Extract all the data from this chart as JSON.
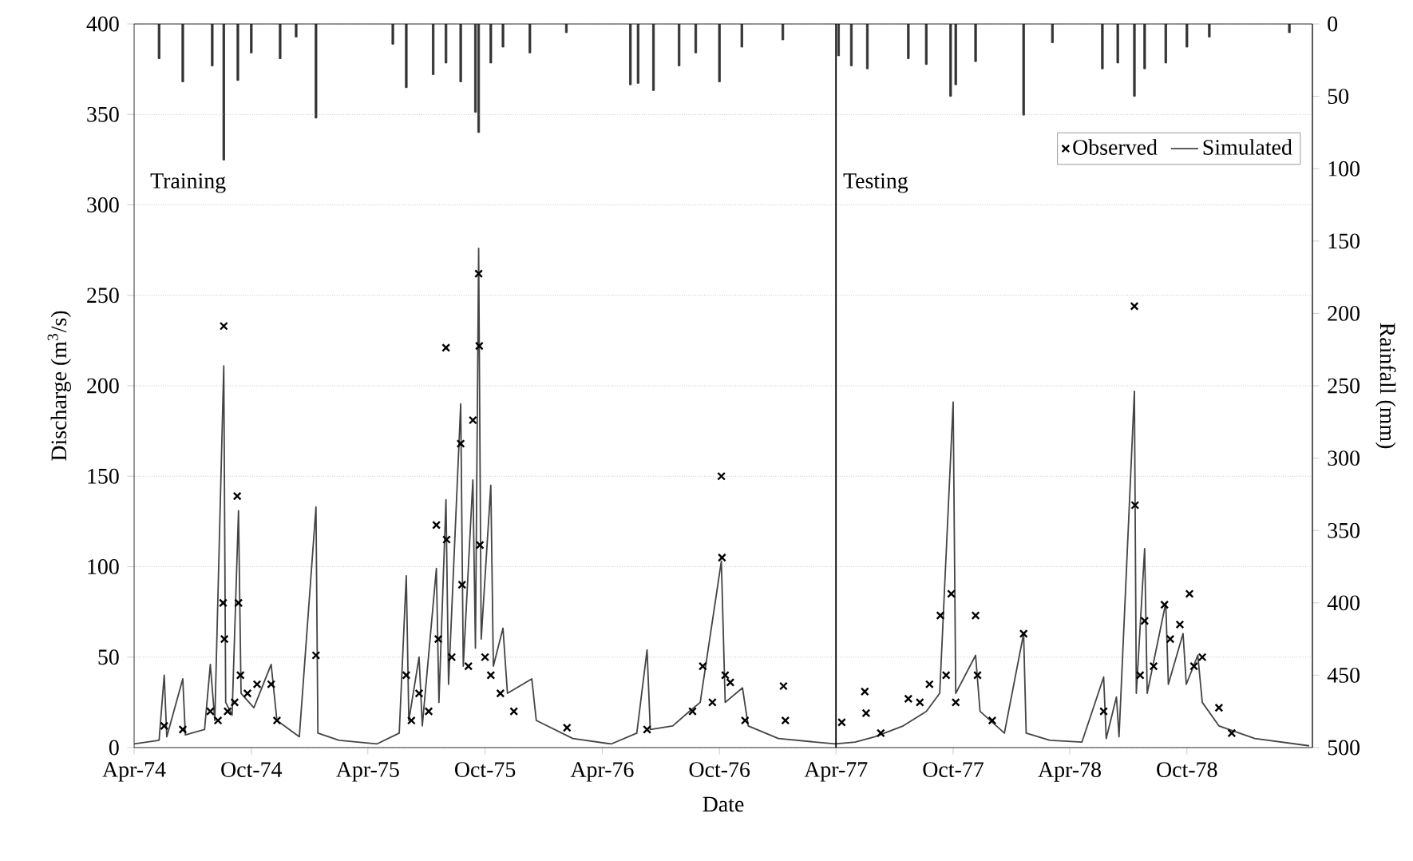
{
  "chart_data": {
    "type": "line",
    "xlabel": "Date",
    "ylabel": "Discharge (m$^{3}$/s)",
    "y2label": "Rainfall (mm)",
    "xlim": [
      "1974-04-01",
      "1979-04-15"
    ],
    "xticks": [
      {
        "value": "1974-04-01",
        "label": "Apr-74"
      },
      {
        "value": "1974-10-01",
        "label": "Oct-74"
      },
      {
        "value": "1975-04-01",
        "label": "Apr-75"
      },
      {
        "value": "1975-10-01",
        "label": "Oct-75"
      },
      {
        "value": "1976-04-01",
        "label": "Apr-76"
      },
      {
        "value": "1976-10-01",
        "label": "Oct-76"
      },
      {
        "value": "1977-04-01",
        "label": "Apr-77"
      },
      {
        "value": "1977-10-01",
        "label": "Oct-77"
      },
      {
        "value": "1978-04-01",
        "label": "Apr-78"
      },
      {
        "value": "1978-10-01",
        "label": "Oct-78"
      }
    ],
    "ylim": [
      0,
      400
    ],
    "yticks": [
      0,
      50,
      100,
      150,
      200,
      250,
      300,
      350,
      400
    ],
    "y2lim": [
      500,
      0
    ],
    "y2ticks": [
      0,
      50,
      100,
      150,
      200,
      250,
      300,
      350,
      400,
      450,
      500
    ],
    "grid": "y",
    "legend": "top right",
    "ref_lines": [
      {
        "axis": "x",
        "value": "1977-04-01",
        "color": "#000000"
      }
    ],
    "annotations": [
      "Training",
      "Testing"
    ],
    "series": [
      {
        "name": "Observed",
        "type": "scatter",
        "marker": "cross",
        "color": "#000000",
        "x": [
          "1974-05-18",
          "1974-06-16",
          "1974-07-29",
          "1974-08-10",
          "1974-08-18",
          "1974-08-19",
          "1974-08-20",
          "1974-08-25",
          "1974-09-05",
          "1974-09-09",
          "1974-09-11",
          "1974-09-14",
          "1974-09-25",
          "1974-10-10",
          "1974-11-01",
          "1974-11-10",
          "1975-01-10",
          "1975-05-31",
          "1975-06-08",
          "1975-06-20",
          "1975-07-05",
          "1975-07-17",
          "1975-07-20",
          "1975-08-01",
          "1975-08-02",
          "1975-08-10",
          "1975-08-24",
          "1975-08-26",
          "1975-09-05",
          "1975-09-12",
          "1975-09-21",
          "1975-09-22",
          "1975-09-23",
          "1975-10-01",
          "1975-10-10",
          "1975-10-25",
          "1975-11-15",
          "1976-02-06",
          "1976-06-10",
          "1976-08-20",
          "1976-09-05",
          "1976-09-20",
          "1976-10-04",
          "1976-10-05",
          "1976-10-10",
          "1976-10-18",
          "1976-11-10",
          "1977-01-09",
          "1977-01-12",
          "1977-04-10",
          "1977-05-16",
          "1977-05-18",
          "1977-06-10",
          "1977-07-23",
          "1977-08-10",
          "1977-08-25",
          "1977-09-11",
          "1977-09-20",
          "1977-09-28",
          "1977-10-05",
          "1977-11-05",
          "1977-11-08",
          "1977-12-01",
          "1978-01-19",
          "1978-05-24",
          "1978-07-11",
          "1978-07-12",
          "1978-07-20",
          "1978-07-27",
          "1978-08-10",
          "1978-08-27",
          "1978-09-05",
          "1978-09-20",
          "1978-10-05",
          "1978-10-12",
          "1978-10-25",
          "1978-11-20",
          "1978-12-10"
        ],
        "values": [
          12,
          10,
          20,
          15,
          80,
          233,
          60,
          20,
          25,
          139,
          80,
          40,
          30,
          35,
          35,
          15,
          51,
          40,
          15,
          30,
          20,
          123,
          60,
          221,
          115,
          50,
          168,
          90,
          45,
          181,
          262,
          222,
          112,
          50,
          40,
          30,
          20,
          11,
          10,
          20,
          45,
          25,
          150,
          105,
          40,
          36,
          15,
          34,
          15,
          14,
          31,
          19,
          8,
          27,
          25,
          35,
          73,
          40,
          85,
          25,
          73,
          40,
          15,
          63,
          20,
          244,
          134,
          40,
          70,
          45,
          79,
          60,
          68,
          85,
          45,
          50,
          22,
          8
        ]
      },
      {
        "name": "Simulated",
        "color": "#444444",
        "x": [
          "1974-04-01",
          "1974-05-10",
          "1974-05-18",
          "1974-05-22",
          "1974-06-16",
          "1974-06-20",
          "1974-07-20",
          "1974-07-29",
          "1974-08-05",
          "1974-08-19",
          "1974-08-22",
          "1974-09-01",
          "1974-09-11",
          "1974-09-15",
          "1974-10-05",
          "1974-11-01",
          "1974-11-10",
          "1974-12-15",
          "1975-01-10",
          "1975-01-13",
          "1975-02-15",
          "1975-04-15",
          "1975-05-20",
          "1975-05-31",
          "1975-06-04",
          "1975-06-20",
          "1975-06-25",
          "1975-07-17",
          "1975-07-21",
          "1975-08-01",
          "1975-08-05",
          "1975-08-24",
          "1975-08-28",
          "1975-09-12",
          "1975-09-16",
          "1975-09-21",
          "1975-09-25",
          "1975-10-10",
          "1975-10-14",
          "1975-10-29",
          "1975-11-05",
          "1975-12-13",
          "1975-12-20",
          "1976-02-15",
          "1976-04-15",
          "1976-05-25",
          "1976-06-10",
          "1976-06-15",
          "1976-07-20",
          "1976-08-15",
          "1976-09-01",
          "1976-10-04",
          "1976-10-10",
          "1976-11-06",
          "1976-11-15",
          "1977-01-01",
          "1977-03-31",
          "1977-05-01",
          "1977-06-01",
          "1977-07-15",
          "1977-08-20",
          "1977-09-10",
          "1977-10-01",
          "1977-10-05",
          "1977-11-05",
          "1977-11-12",
          "1977-12-20",
          "1978-01-19",
          "1978-01-23",
          "1978-03-01",
          "1978-04-20",
          "1978-05-24",
          "1978-05-28",
          "1978-06-13",
          "1978-06-17",
          "1978-07-11",
          "1978-07-14",
          "1978-07-27",
          "1978-07-31",
          "1978-08-29",
          "1978-09-02",
          "1978-09-25",
          "1978-09-30",
          "1978-10-18",
          "1978-10-25",
          "1978-11-20",
          "1979-01-15",
          "1979-04-10"
        ],
        "values": [
          2,
          4,
          40,
          6,
          38,
          7,
          10,
          46,
          15,
          211,
          25,
          18,
          131,
          30,
          22,
          46,
          15,
          6,
          133,
          8,
          4,
          2,
          8,
          95,
          15,
          50,
          12,
          99,
          25,
          137,
          35,
          190,
          45,
          148,
          55,
          276,
          60,
          145,
          45,
          66,
          30,
          38,
          15,
          5,
          2,
          8,
          54,
          10,
          12,
          20,
          25,
          103,
          25,
          33,
          12,
          5,
          2,
          3,
          6,
          12,
          20,
          30,
          191,
          30,
          51,
          20,
          8,
          63,
          8,
          4,
          3,
          39,
          5,
          28,
          6,
          197,
          30,
          110,
          30,
          80,
          35,
          63,
          35,
          51,
          25,
          12,
          5,
          1
        ]
      },
      {
        "type": "bar",
        "axis": "y2",
        "color": "#333333",
        "x": [
          "1974-05-10",
          "1974-06-16",
          "1974-08-01",
          "1974-08-19",
          "1974-09-10",
          "1974-10-01",
          "1974-11-15",
          "1974-12-10",
          "1975-01-10",
          "1975-05-10",
          "1975-05-31",
          "1975-07-12",
          "1975-08-01",
          "1975-08-24",
          "1975-09-16",
          "1975-09-21",
          "1975-10-10",
          "1975-10-29",
          "1975-12-10",
          "1976-02-05",
          "1976-05-15",
          "1976-05-27",
          "1976-06-20",
          "1976-07-30",
          "1976-08-25",
          "1976-10-01",
          "1976-11-05",
          "1977-01-08",
          "1977-04-05",
          "1977-04-25",
          "1977-05-20",
          "1977-07-23",
          "1977-08-20",
          "1977-09-27",
          "1977-10-05",
          "1977-11-05",
          "1978-01-19",
          "1978-03-05",
          "1978-05-22",
          "1978-06-15",
          "1978-07-11",
          "1978-07-27",
          "1978-08-29",
          "1978-10-01",
          "1978-11-05",
          "1979-03-10"
        ],
        "values": [
          24,
          40,
          29,
          94,
          39,
          20,
          24,
          9,
          65,
          14,
          44,
          35,
          27,
          40,
          61,
          75,
          27,
          16,
          20,
          6,
          42,
          41,
          46,
          29,
          20,
          40,
          16,
          11,
          22,
          29,
          31,
          24,
          28,
          50,
          42,
          26,
          63,
          13,
          31,
          27,
          50,
          31,
          27,
          16,
          9,
          6
        ]
      }
    ]
  }
}
